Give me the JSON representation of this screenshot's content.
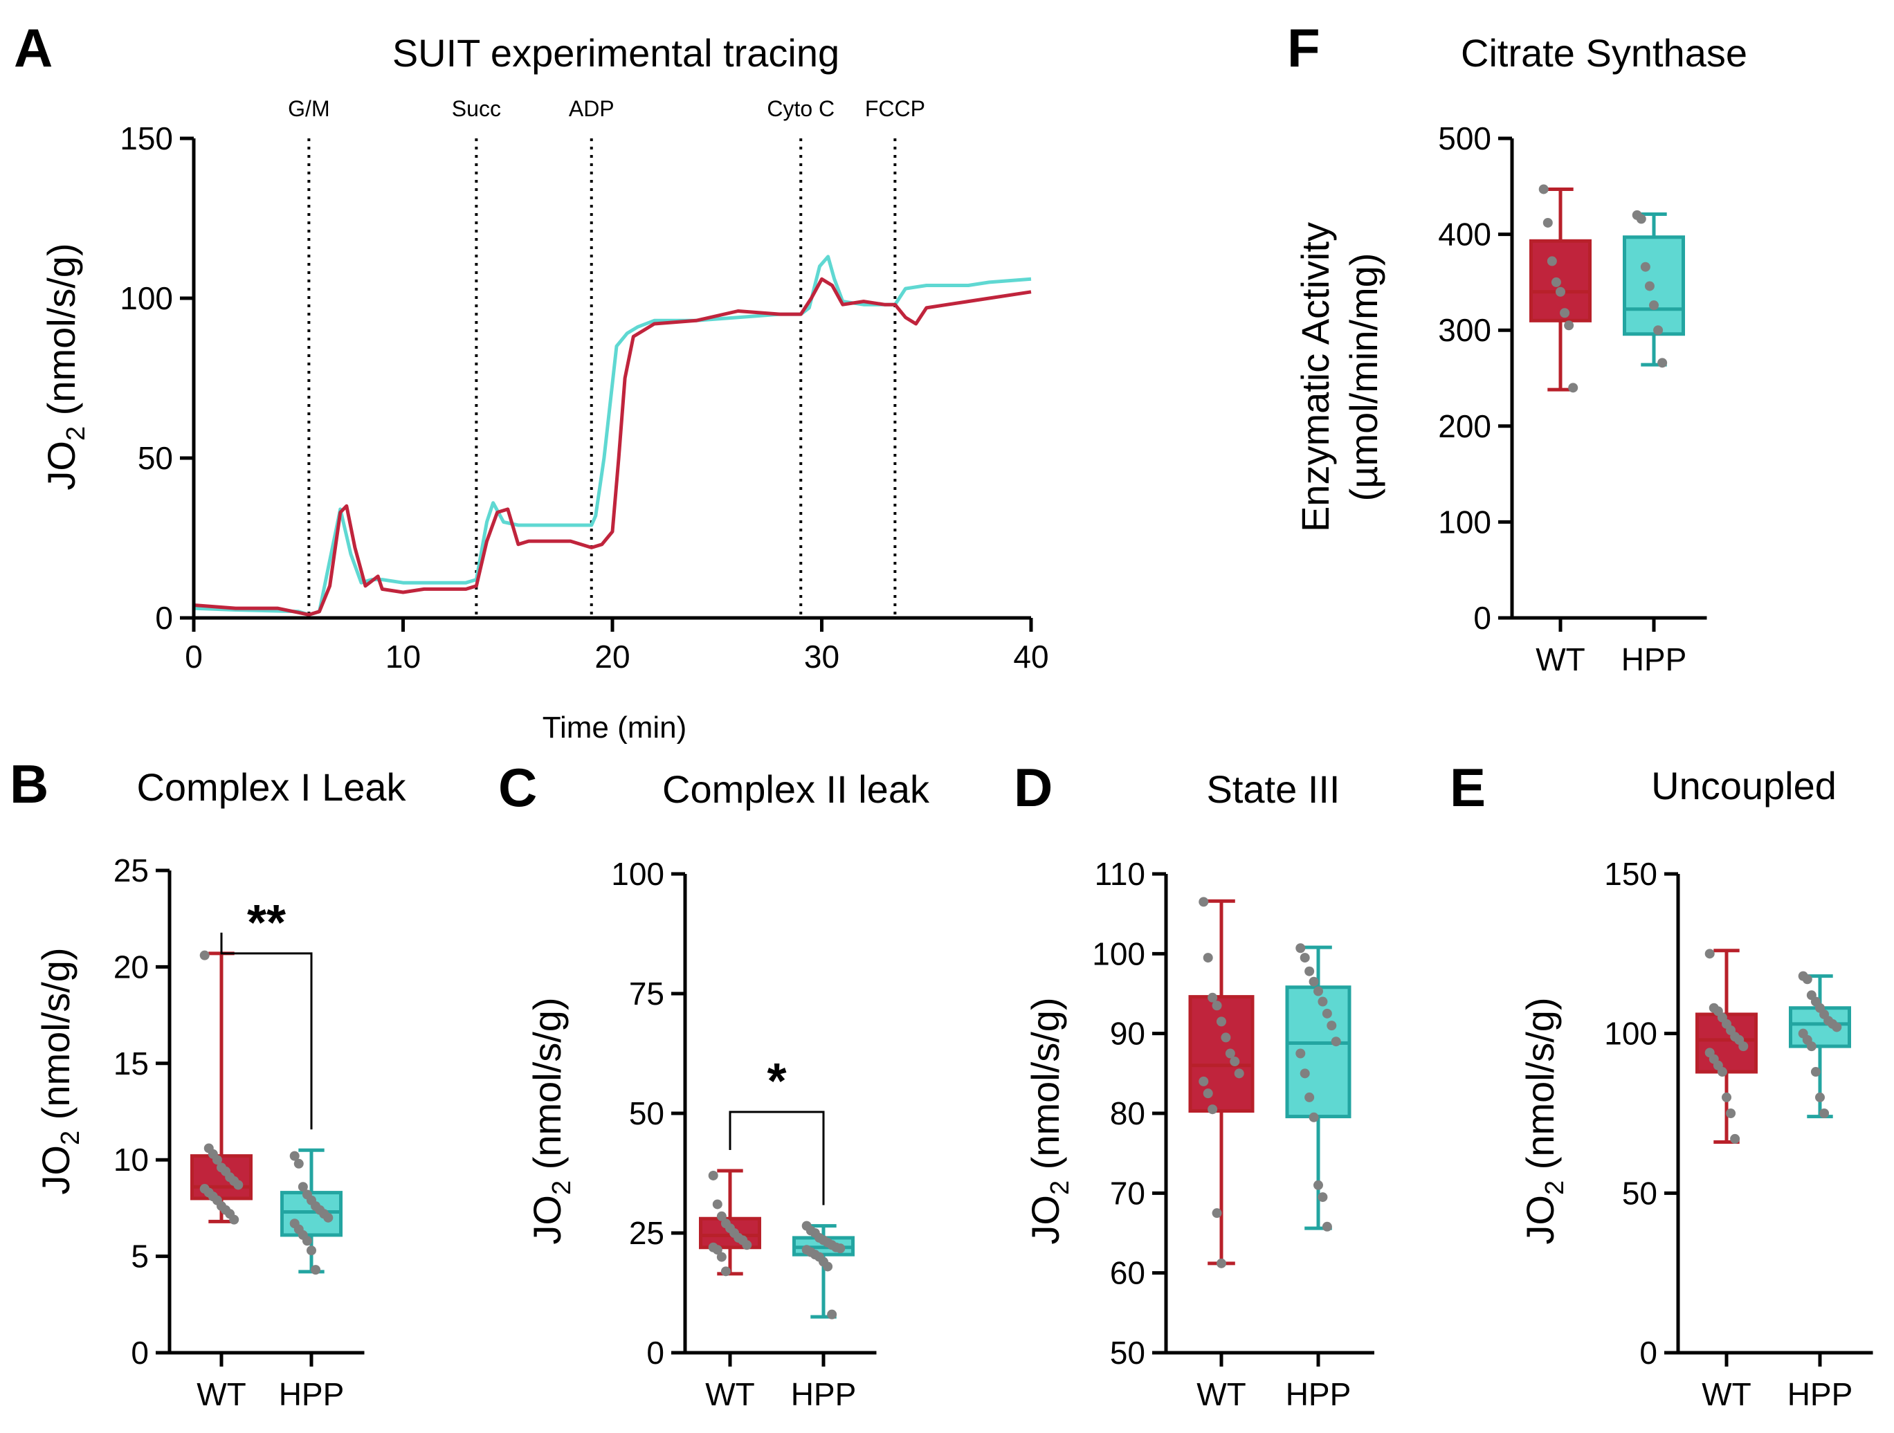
{
  "colors": {
    "wt": "#c0243c",
    "wt_dark": "#b8202a",
    "hpp": "#5fd8d2",
    "hpp_dark": "#23a5a1",
    "dot": "#808080"
  },
  "panels": {
    "A": {
      "letter": "A",
      "title": "SUIT experimental tracing",
      "ylabel_main": "JO",
      "ylabel_sub": "2",
      "ylabel_unit": " (nmol/s/g)",
      "xlabel": "Time (min)"
    },
    "B": {
      "letter": "B",
      "title": "Complex I Leak",
      "ylabel_main": "JO",
      "ylabel_sub": "2",
      "ylabel_unit": " (nmol/s/g)",
      "sig": "**"
    },
    "C": {
      "letter": "C",
      "title": "Complex II leak",
      "ylabel_main": "JO",
      "ylabel_sub": "2",
      "ylabel_unit": " (nmol/s/g)",
      "sig": "*"
    },
    "D": {
      "letter": "D",
      "title": "State III",
      "ylabel_main": "JO",
      "ylabel_sub": "2",
      "ylabel_unit": " (nmol/s/g)"
    },
    "E": {
      "letter": "E",
      "title": "Uncoupled",
      "ylabel_main": "JO",
      "ylabel_sub": "2",
      "ylabel_unit": " (nmol/s/g)"
    },
    "F": {
      "letter": "F",
      "title": "Citrate Synthase",
      "ylabel_line1": "Enzymatic Activity",
      "ylabel_line2": "(µmol/min/mg)"
    }
  },
  "chart_data": [
    {
      "panel": "A",
      "type": "line",
      "title": "SUIT experimental tracing",
      "xlabel": "Time (min)",
      "ylabel": "JO2 (nmol/s/g)",
      "xlim": [
        0,
        40
      ],
      "ylim": [
        0,
        150
      ],
      "xticks": [
        "0",
        "10",
        "20",
        "30",
        "40"
      ],
      "yticks": [
        "0",
        "50",
        "100",
        "150"
      ],
      "events": [
        {
          "label": "G/M",
          "x": 5.5
        },
        {
          "label": "Succ",
          "x": 13.5
        },
        {
          "label": "ADP",
          "x": 19.0
        },
        {
          "label": "Cyto C",
          "x": 29.0
        },
        {
          "label": "FCCP",
          "x": 33.5
        }
      ],
      "series": [
        {
          "name": "HPP",
          "color": "#5fd8d2",
          "x": [
            0,
            2,
            5,
            5.5,
            6,
            6.5,
            7.0,
            7.5,
            8,
            8.5,
            9,
            10,
            11,
            12,
            13,
            13.5,
            14,
            14.3,
            14.8,
            15.5,
            16,
            17,
            18,
            19,
            19.2,
            19.6,
            20.2,
            20.7,
            21.2,
            22,
            24,
            26,
            28,
            29,
            29.4,
            29.9,
            30.3,
            30.6,
            31,
            32,
            33.5,
            34,
            35,
            37,
            38,
            40
          ],
          "values": [
            3,
            2.5,
            2,
            1,
            2,
            18,
            34,
            20,
            11,
            12,
            12,
            11,
            11,
            11,
            11,
            12,
            30,
            36,
            30,
            29,
            29,
            29,
            29,
            29,
            32,
            50,
            85,
            89,
            91,
            93,
            93,
            94,
            95,
            95,
            97,
            110,
            113,
            106,
            99,
            98,
            98,
            103,
            104,
            104,
            105,
            106
          ]
        },
        {
          "name": "WT",
          "color": "#c0243c",
          "x": [
            0,
            2,
            4,
            5.5,
            6,
            6.5,
            7.0,
            7.3,
            7.7,
            8.2,
            8.8,
            9,
            10,
            11,
            12,
            13,
            13.5,
            14,
            14.5,
            15,
            15.5,
            16,
            17,
            18,
            19,
            19.5,
            20,
            20.3,
            20.6,
            21,
            21.5,
            22,
            24,
            26,
            28,
            29,
            29.5,
            30,
            30.5,
            31,
            32,
            33,
            33.5,
            34,
            34.5,
            35,
            36,
            38,
            40
          ],
          "values": [
            4,
            3,
            3,
            1,
            2,
            10,
            33,
            35,
            22,
            10,
            13,
            9,
            8,
            9,
            9,
            9,
            10,
            24,
            33,
            34,
            23,
            24,
            24,
            24,
            22,
            23,
            27,
            50,
            75,
            88,
            90,
            92,
            93,
            96,
            95,
            95,
            100,
            106,
            104,
            98,
            99,
            98,
            98,
            94,
            92,
            97,
            98,
            100,
            102
          ]
        }
      ]
    },
    {
      "panel": "B",
      "type": "box",
      "title": "Complex I Leak",
      "ylabel": "JO2 (nmol/s/g)",
      "categories": [
        "WT",
        "HPP"
      ],
      "ylim": [
        0,
        25
      ],
      "yticks": [
        "0",
        "5",
        "10",
        "15",
        "20",
        "25"
      ],
      "boxes": [
        {
          "name": "WT",
          "min": 6.8,
          "q1": 8.0,
          "median": 8.6,
          "q3": 10.2,
          "max": 20.7,
          "points": [
            20.6,
            10.6,
            10.3,
            10.0,
            9.6,
            9.4,
            9.1,
            8.9,
            8.7,
            8.5,
            8.3,
            8.1,
            7.9,
            7.6,
            7.4,
            7.2,
            6.9
          ]
        },
        {
          "name": "HPP",
          "min": 4.2,
          "q1": 6.1,
          "median": 7.3,
          "q3": 8.3,
          "max": 10.5,
          "points": [
            10.2,
            9.8,
            8.6,
            8.2,
            7.9,
            7.6,
            7.4,
            7.2,
            7.0,
            6.7,
            6.4,
            6.1,
            5.8,
            5.3,
            4.3
          ]
        }
      ],
      "significance": "**"
    },
    {
      "panel": "C",
      "type": "box",
      "title": "Complex II leak",
      "ylabel": "JO2 (nmol/s/g)",
      "categories": [
        "WT",
        "HPP"
      ],
      "ylim": [
        0,
        100
      ],
      "yticks": [
        "0",
        "25",
        "50",
        "75",
        "100"
      ],
      "boxes": [
        {
          "name": "WT",
          "min": 16.5,
          "q1": 22.0,
          "median": 24.5,
          "q3": 28.0,
          "max": 38.0,
          "points": [
            37,
            31,
            28.5,
            27,
            26,
            25,
            24,
            23.5,
            22.5,
            22,
            21.5,
            20,
            17
          ]
        },
        {
          "name": "HPP",
          "min": 7.5,
          "q1": 20.5,
          "median": 22.0,
          "q3": 24.0,
          "max": 26.5,
          "points": [
            26.5,
            25.5,
            25,
            24,
            23.5,
            23,
            22.5,
            22,
            21.8,
            21.5,
            21,
            20.5,
            20,
            19,
            18,
            8
          ]
        }
      ],
      "significance": "*"
    },
    {
      "panel": "D",
      "type": "box",
      "title": "State III",
      "ylabel": "JO2 (nmol/s/g)",
      "categories": [
        "WT",
        "HPP"
      ],
      "ylim": [
        50,
        110
      ],
      "yticks": [
        "50",
        "60",
        "70",
        "80",
        "90",
        "100",
        "110"
      ],
      "boxes": [
        {
          "name": "WT",
          "min": 61.2,
          "q1": 80.3,
          "median": 86.0,
          "q3": 94.6,
          "max": 106.6,
          "points": [
            106.5,
            99.5,
            94.5,
            93.5,
            91.5,
            89.5,
            87.5,
            86.5,
            85,
            84,
            82.5,
            80.5,
            67.5,
            61.2
          ]
        },
        {
          "name": "HPP",
          "min": 65.6,
          "q1": 79.6,
          "median": 88.8,
          "q3": 95.8,
          "max": 100.8,
          "points": [
            100.7,
            99.5,
            97.8,
            96.5,
            95.3,
            94,
            92.5,
            91,
            89,
            87.5,
            85,
            82,
            79.5,
            71,
            69.5,
            65.8
          ]
        }
      ]
    },
    {
      "panel": "E",
      "type": "box",
      "title": "Uncoupled",
      "ylabel": "JO2 (nmol/s/g)",
      "categories": [
        "WT",
        "HPP"
      ],
      "ylim": [
        0,
        150
      ],
      "yticks": [
        "0",
        "50",
        "100",
        "150"
      ],
      "boxes": [
        {
          "name": "WT",
          "min": 66,
          "q1": 88,
          "median": 98,
          "q3": 106,
          "max": 126,
          "points": [
            125,
            108,
            107,
            105,
            103,
            101,
            99,
            98,
            96,
            94,
            92,
            90,
            88,
            80,
            75,
            67
          ]
        },
        {
          "name": "HPP",
          "min": 74,
          "q1": 96,
          "median": 103,
          "q3": 108,
          "max": 118,
          "points": [
            118,
            117,
            112,
            110,
            108,
            106,
            104,
            103,
            102,
            100,
            98,
            96,
            88,
            80,
            75
          ]
        }
      ]
    },
    {
      "panel": "F",
      "type": "box",
      "title": "Citrate Synthase",
      "ylabel": "Enzymatic Activity (µmol/min/mg)",
      "categories": [
        "WT",
        "HPP"
      ],
      "ylim": [
        0,
        500
      ],
      "yticks": [
        "0",
        "100",
        "200",
        "300",
        "400",
        "500"
      ],
      "boxes": [
        {
          "name": "WT",
          "min": 238,
          "q1": 310,
          "median": 340,
          "q3": 393,
          "max": 447,
          "points": [
            447,
            412,
            372,
            350,
            340,
            318,
            305,
            240
          ]
        },
        {
          "name": "HPP",
          "min": 264,
          "q1": 296,
          "median": 322,
          "q3": 397,
          "max": 421,
          "points": [
            420,
            416,
            366,
            346,
            326,
            300,
            266
          ]
        }
      ]
    }
  ]
}
